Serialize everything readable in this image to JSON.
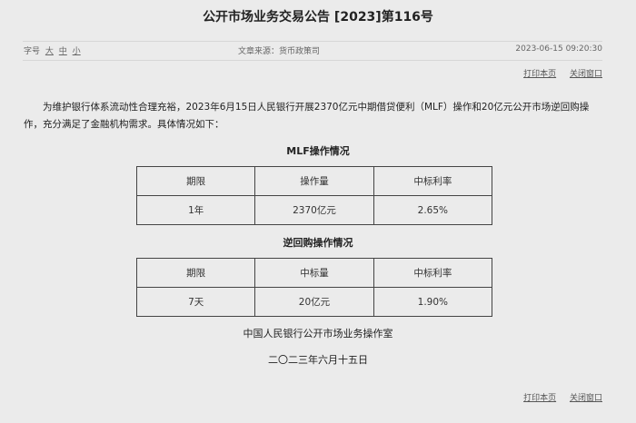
{
  "title": "公开市场业务交易公告 [2023]第116号",
  "meta": {
    "font_label": "字号",
    "font_large": "大",
    "font_medium": "中",
    "font_small": "小",
    "source": "文章来源：货币政策司",
    "datetime": "2023-06-15 09:20:30"
  },
  "links": {
    "print": "打印本页",
    "close": "关闭窗口"
  },
  "paragraph": "为维护银行体系流动性合理充裕，2023年6月15日人民银行开展2370亿元中期借贷便利（MLF）操作和20亿元公开市场逆回购操作，充分满足了金融机构需求。具体情况如下：",
  "mlf": {
    "caption": "MLF操作情况",
    "headers": [
      "期限",
      "操作量",
      "中标利率"
    ],
    "row": [
      "1年",
      "2370亿元",
      "2.65%"
    ]
  },
  "repo": {
    "caption": "逆回购操作情况",
    "headers": [
      "期限",
      "中标量",
      "中标利率"
    ],
    "row": [
      "7天",
      "20亿元",
      "1.90%"
    ]
  },
  "footer": {
    "office": "中国人民银行公开市场业务操作室",
    "date": "二〇二三年六月十五日"
  }
}
